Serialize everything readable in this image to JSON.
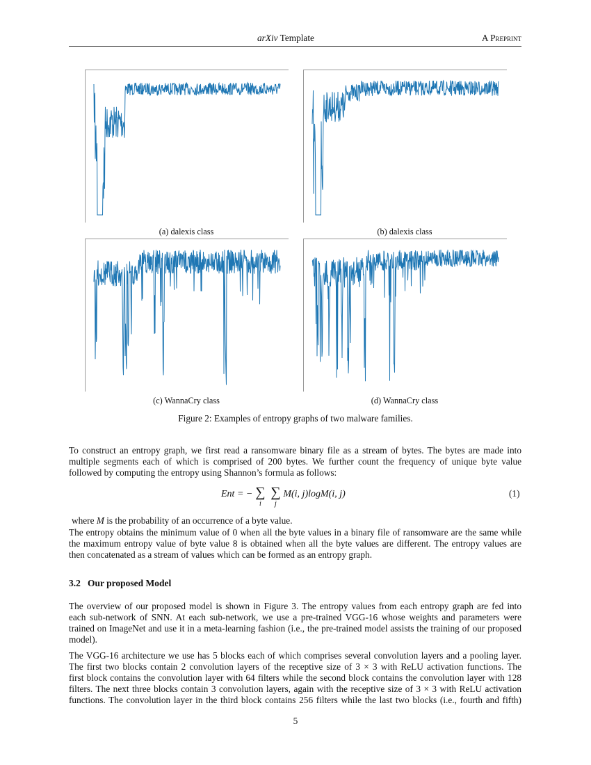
{
  "header": {
    "left": "arXiv",
    "left_rest": " Template",
    "right": "A Preprint"
  },
  "figure": {
    "panels": [
      {
        "caption": "(a) dalexis class"
      },
      {
        "caption": "(b) dalexis class"
      },
      {
        "caption": "(c) WannaCry class"
      },
      {
        "caption": "(d) WannaCry class"
      }
    ],
    "caption": "Figure 2: Examples of entropy graphs of two malware families.",
    "line_color": "#1f77b4"
  },
  "para1": [
    "To construct an entropy graph, we first read a ransomware binary file as a stream of bytes. The bytes are made into",
    "multiple segments each of which is comprised of 200 bytes. We further count the frequency of unique byte value",
    "followed by computing the entropy using Shannon’s formula as follows:"
  ],
  "equation": {
    "lhs": "Ent = −",
    "sum": "∑",
    "sub_i": "i",
    "sub_j": "j",
    "rhs": "M(i, j)logM(i, j)",
    "number": "(1)"
  },
  "where": {
    "pre": "where ",
    "var": "M",
    "post": " is the probability of an occurrence of a byte value."
  },
  "para2": [
    "The entropy obtains the minimum value of 0 when all the byte values in a binary file of ransomware are the same while",
    "the maximum entropy value of byte value 8 is obtained when all the byte values are different. The entropy values are",
    "then concatenated as a stream of values which can be formed as an entropy graph."
  ],
  "section": {
    "number": "3.2",
    "title": "Our proposed Model"
  },
  "para3": [
    "The overview of our proposed model is shown in Figure 3. The entropy values from each entropy graph are fed into",
    "each sub-network of SNN. At each sub-network, we use a pre-trained VGG-16 whose weights and parameters were",
    "trained on ImageNet and use it in a meta-learning fashion (i.e., the pre-trained model assists the training of our proposed",
    "model)."
  ],
  "para4": [
    "The VGG-16 architecture we use has 5 blocks each of which comprises several convolution layers and a pooling layer.",
    "The first two blocks contain 2 convolution layers of the receptive size of 3 × 3 with ReLU activation functions. The",
    "first block contains the convolution layer with 64 filters while the second block contains the convolution layer with 128",
    "filters. The next three blocks contain 3 convolution layers, again with the receptive size of 3 × 3 with ReLU activation",
    "functions. The convolution layer in the third block contains 256 filters while the last two blocks (i.e., fourth and fifth)"
  ],
  "page_number": "5"
}
